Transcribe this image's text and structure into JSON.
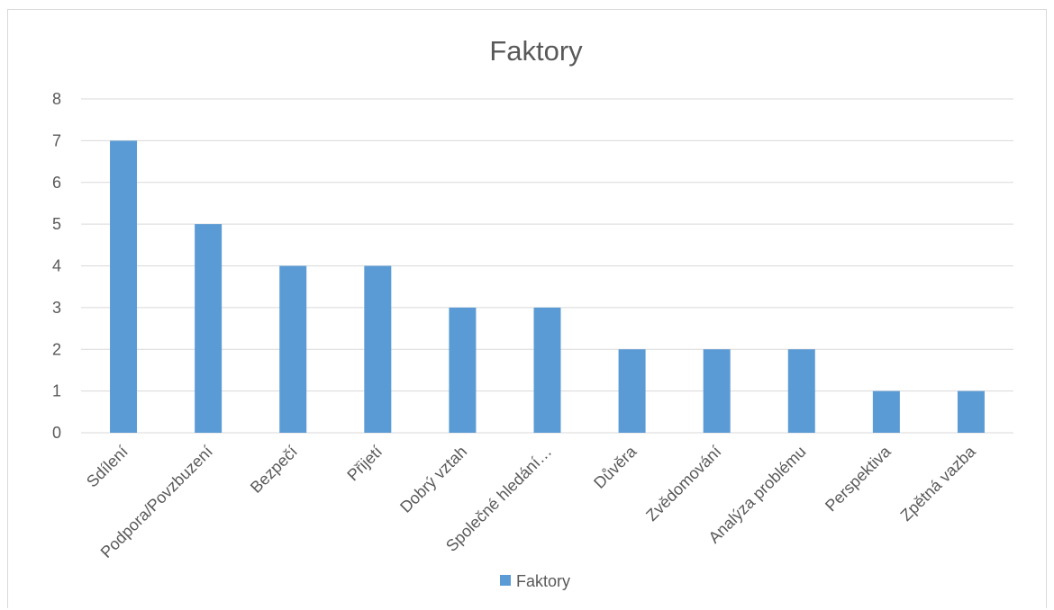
{
  "chart_data": {
    "type": "bar",
    "title": "Faktory",
    "categories": [
      "Sdílení",
      "Podpora/Povzbuzení",
      "Bezpečí",
      "Přijetí",
      "Dobrý vztah",
      "Společné hledání…",
      "Důvěra",
      "Zvědomování",
      "Analýza problému",
      "Perspektiva",
      "Zpětná vazba"
    ],
    "series": [
      {
        "name": "Faktory",
        "values": [
          7,
          5,
          4,
          4,
          3,
          3,
          2,
          2,
          2,
          1,
          1
        ]
      }
    ],
    "xlabel": "",
    "ylabel": "",
    "ylim": [
      0,
      8
    ],
    "yticks": [
      "0",
      "1",
      "2",
      "3",
      "4",
      "5",
      "6",
      "7",
      "8"
    ],
    "grid": true,
    "legend": "bottom",
    "colors": {
      "bar": "#5b9bd5"
    }
  }
}
